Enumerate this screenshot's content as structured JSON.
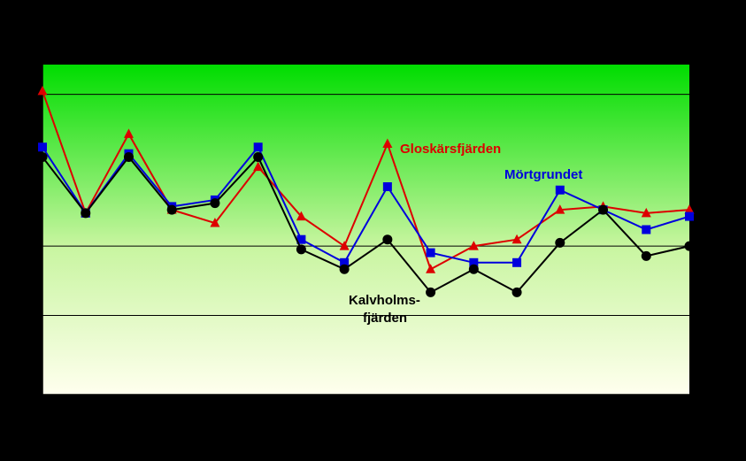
{
  "chart_data": {
    "type": "line",
    "x": [
      1,
      2,
      3,
      4,
      5,
      6,
      7,
      8,
      9,
      10,
      11,
      12,
      13,
      14,
      15,
      16
    ],
    "ylim": [
      0,
      1
    ],
    "reference_lines": [
      0.24,
      0.45,
      0.91
    ],
    "grid": false,
    "background_gradient": [
      "#00dd00",
      "#ffffee"
    ],
    "series": [
      {
        "name": "Gloskärsfjärden",
        "color": "#dd0000",
        "marker": "triangle",
        "values": [
          0.92,
          0.55,
          0.79,
          0.56,
          0.52,
          0.69,
          0.54,
          0.45,
          0.76,
          0.38,
          0.45,
          0.47,
          0.56,
          0.57,
          0.55,
          0.56
        ]
      },
      {
        "name": "Mörtgrundet",
        "color": "#0000dd",
        "marker": "square",
        "values": [
          0.75,
          0.55,
          0.73,
          0.57,
          0.59,
          0.75,
          0.47,
          0.4,
          0.63,
          0.43,
          0.4,
          0.4,
          0.62,
          0.56,
          0.5,
          0.54
        ]
      },
      {
        "name": "Kalvholms-fjärden",
        "color": "#000000",
        "marker": "circle",
        "values": [
          0.72,
          0.55,
          0.72,
          0.56,
          0.58,
          0.72,
          0.44,
          0.38,
          0.47,
          0.31,
          0.38,
          0.31,
          0.46,
          0.56,
          0.42,
          0.45
        ]
      }
    ]
  },
  "labels": {
    "gloskar": "Gloskärsfjärden",
    "mort": "Mörtgrundet",
    "kalv_line1": "Kalvholms-",
    "kalv_line2": "fjärden"
  }
}
